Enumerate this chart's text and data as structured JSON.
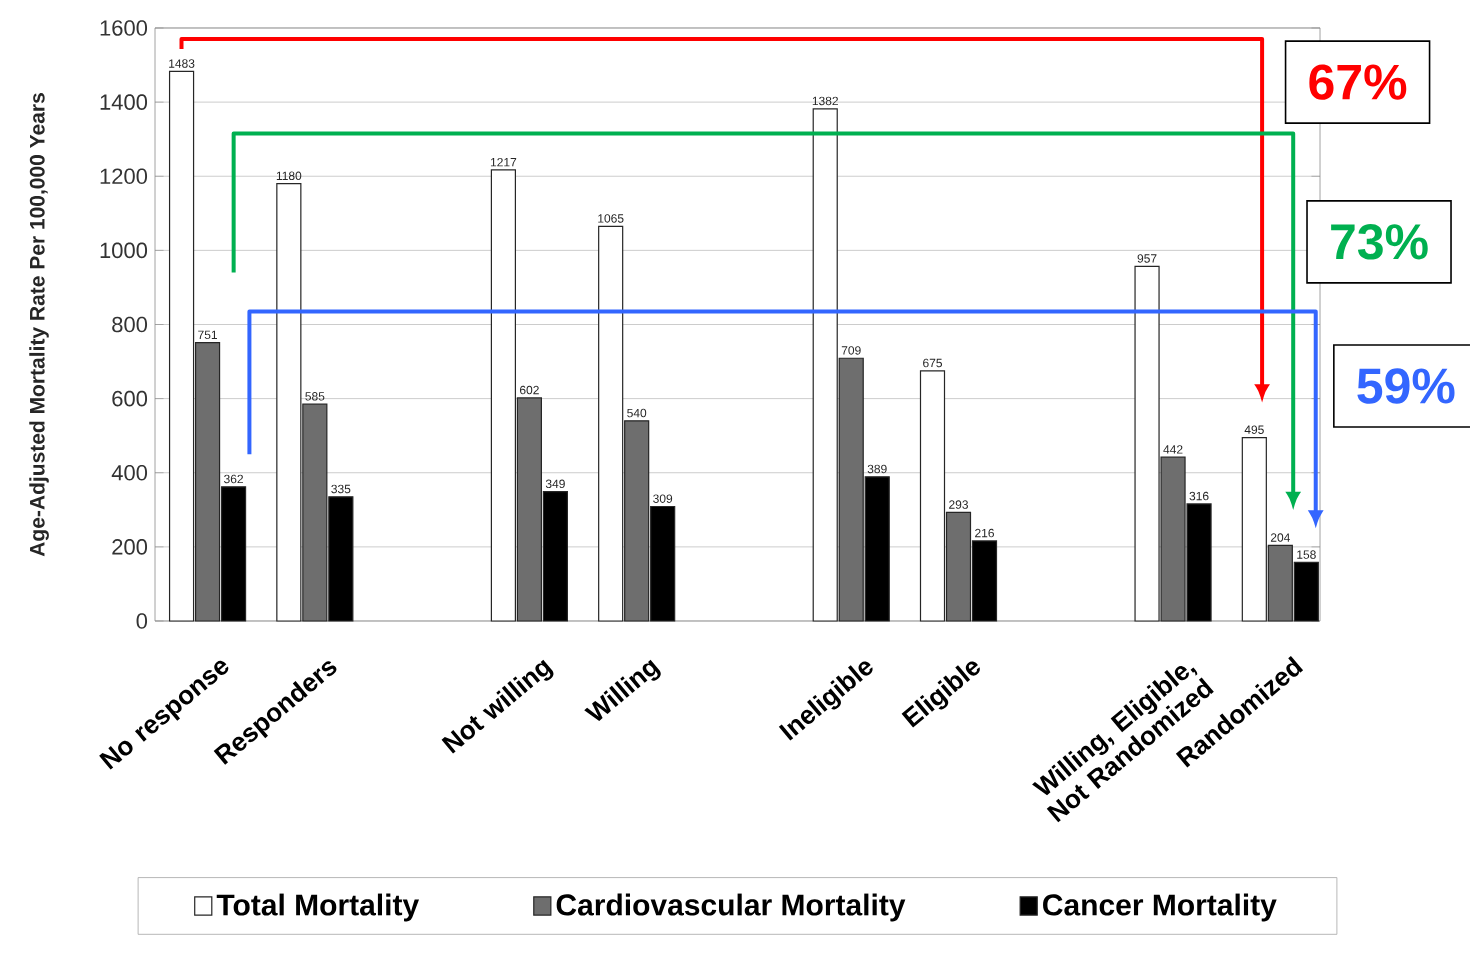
{
  "chart_data": {
    "type": "bar",
    "ylabel": "Age-Adjusted Mortality Rate Per 100,000 Years",
    "categories": [
      "No response",
      "Responders",
      null,
      "Not willing",
      "Willing",
      null,
      "Ineligible",
      "Eligible",
      null,
      "Willing, Eligible, Not Randomized",
      "Randomized"
    ],
    "series": [
      {
        "name": "Total Mortality",
        "color": "#ffffff",
        "values": [
          1483,
          1180,
          null,
          1217,
          1065,
          null,
          1382,
          675,
          null,
          957,
          495
        ]
      },
      {
        "name": "Cardiovascular Mortality",
        "color": "#6e6e6e",
        "values": [
          751,
          585,
          null,
          602,
          540,
          null,
          709,
          293,
          null,
          442,
          204
        ]
      },
      {
        "name": "Cancer Mortality",
        "color": "#000000",
        "values": [
          362,
          335,
          null,
          349,
          309,
          null,
          389,
          216,
          null,
          316,
          158
        ]
      }
    ],
    "ylim": [
      0,
      1600
    ],
    "yticks": [
      0,
      200,
      400,
      600,
      800,
      1000,
      1200,
      1400,
      1600
    ],
    "grid": "y",
    "legend": "bottom",
    "data_labels": true,
    "annotations": [
      "67%",
      "73%",
      "59%"
    ]
  }
}
